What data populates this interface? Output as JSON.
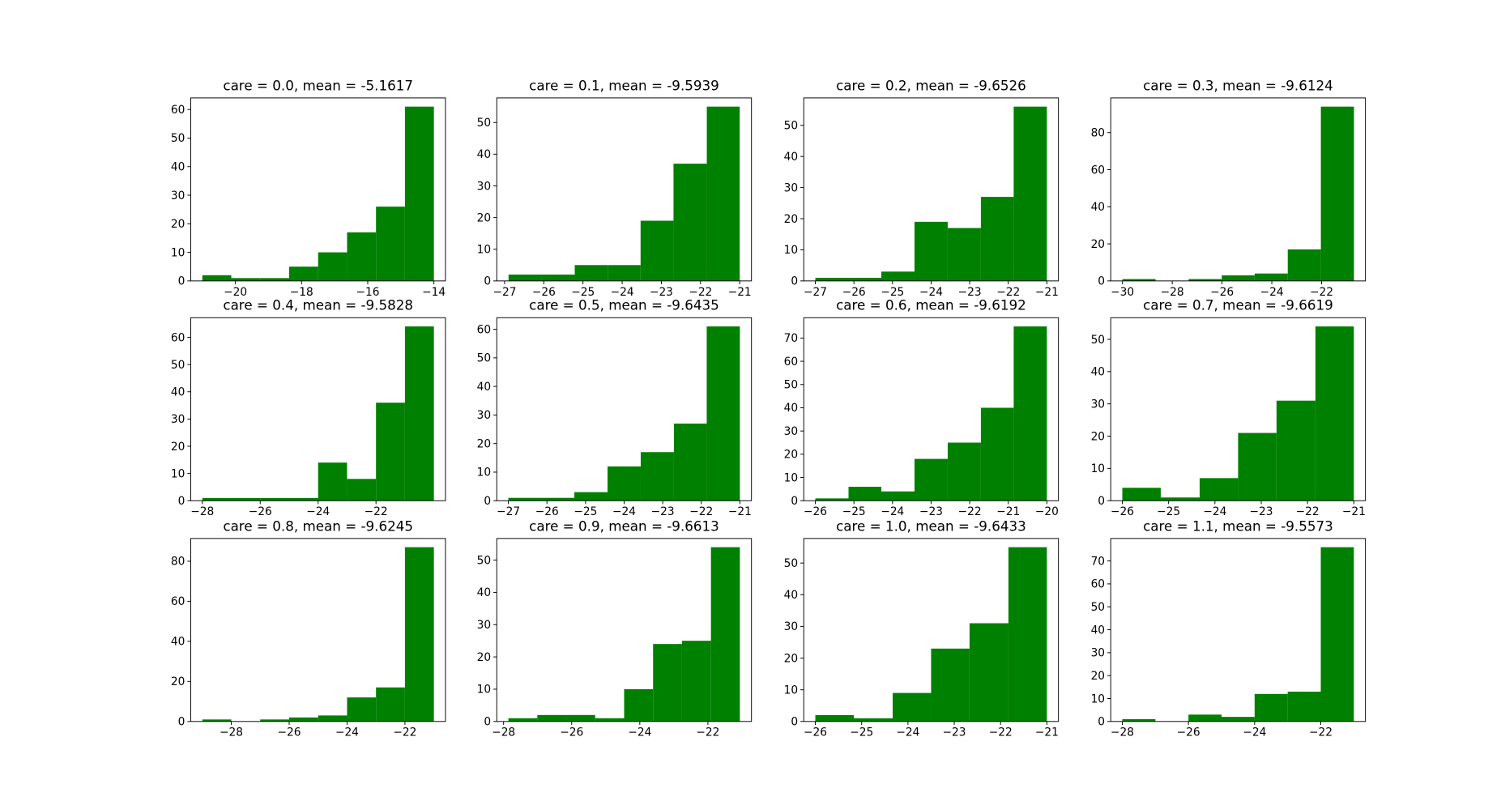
{
  "chart_data": [
    {
      "type": "histogram",
      "title": "care = 0.0, mean = -5.1617",
      "color": "#008000",
      "bins": [
        -21,
        -20.125,
        -19.25,
        -18.375,
        -17.5,
        -16.625,
        -15.75,
        -14.875,
        -14
      ],
      "values": [
        2,
        1,
        1,
        5,
        10,
        17,
        26,
        61
      ],
      "xlim": [
        -21.35,
        -13.65
      ],
      "xticks": [
        {
          "value": -20,
          "label": "−20"
        },
        {
          "value": -18,
          "label": "−18"
        },
        {
          "value": -16,
          "label": "−16"
        },
        {
          "value": -14,
          "label": "−14"
        }
      ],
      "ylim": [
        0,
        64.05
      ],
      "yticks": [
        0,
        10,
        20,
        30,
        40,
        50,
        60
      ]
    },
    {
      "type": "histogram",
      "title": "care = 0.1, mean = -9.5939",
      "color": "#008000",
      "bins": [
        -26.9,
        -26.06,
        -25.21,
        -24.37,
        -23.53,
        -22.69,
        -21.84,
        -21.0
      ],
      "values": [
        2,
        2,
        5,
        5,
        19,
        37,
        55
      ],
      "xlim": [
        -27.2,
        -20.7
      ],
      "xticks": [
        {
          "value": -27,
          "label": "−27"
        },
        {
          "value": -26,
          "label": "−26"
        },
        {
          "value": -25,
          "label": "−25"
        },
        {
          "value": -24,
          "label": "−24"
        },
        {
          "value": -23,
          "label": "−23"
        },
        {
          "value": -22,
          "label": "−22"
        },
        {
          "value": -21,
          "label": "−21"
        }
      ],
      "ylim": [
        0,
        57.75
      ],
      "yticks": [
        0,
        10,
        20,
        30,
        40,
        50
      ]
    },
    {
      "type": "histogram",
      "title": "care = 0.2, mean = -9.6526",
      "color": "#008000",
      "bins": [
        -27,
        -26.14,
        -25.29,
        -24.43,
        -23.57,
        -22.71,
        -21.86,
        -21
      ],
      "values": [
        1,
        1,
        3,
        19,
        17,
        27,
        56
      ],
      "xlim": [
        -27.3,
        -20.7
      ],
      "xticks": [
        {
          "value": -27,
          "label": "−27"
        },
        {
          "value": -26,
          "label": "−26"
        },
        {
          "value": -25,
          "label": "−25"
        },
        {
          "value": -24,
          "label": "−24"
        },
        {
          "value": -23,
          "label": "−23"
        },
        {
          "value": -22,
          "label": "−22"
        },
        {
          "value": -21,
          "label": "−21"
        }
      ],
      "ylim": [
        0,
        58.8
      ],
      "yticks": [
        0,
        10,
        20,
        30,
        40,
        50
      ]
    },
    {
      "type": "histogram",
      "title": "care = 0.3, mean = -9.6124",
      "color": "#008000",
      "bins": [
        -30,
        -28.67,
        -27.34,
        -26.01,
        -24.69,
        -23.36,
        -22.03,
        -20.7
      ],
      "values": [
        1,
        0,
        1,
        3,
        4,
        17,
        94
      ],
      "xlim": [
        -30.47,
        -20.24
      ],
      "xticks": [
        {
          "value": -30,
          "label": "−30"
        },
        {
          "value": -28,
          "label": "−28"
        },
        {
          "value": -26,
          "label": "−26"
        },
        {
          "value": -24,
          "label": "−24"
        },
        {
          "value": -22,
          "label": "−22"
        }
      ],
      "ylim": [
        0,
        98.7
      ],
      "yticks": [
        0,
        20,
        40,
        60,
        80
      ]
    },
    {
      "type": "histogram",
      "title": "care = 0.4, mean = -9.5828",
      "color": "#008000",
      "bins": [
        -28,
        -27,
        -26,
        -25,
        -24,
        -23,
        -22,
        -21,
        -20
      ],
      "values": [
        1,
        1,
        1,
        1,
        14,
        8,
        36,
        64
      ],
      "xlim": [
        -28.4,
        -19.6
      ],
      "xticks": [
        {
          "value": -28,
          "label": "−28"
        },
        {
          "value": -26,
          "label": "−26"
        },
        {
          "value": -24,
          "label": "−24"
        },
        {
          "value": -22,
          "label": "−22"
        }
      ],
      "ylim": [
        0,
        67.2
      ],
      "yticks": [
        0,
        10,
        20,
        30,
        40,
        50,
        60
      ]
    },
    {
      "type": "histogram",
      "title": "care = 0.5, mean = -9.6435",
      "color": "#008000",
      "bins": [
        -27,
        -26.14,
        -25.29,
        -24.43,
        -23.57,
        -22.71,
        -21.86,
        -21
      ],
      "values": [
        1,
        1,
        3,
        12,
        17,
        27,
        61
      ],
      "xlim": [
        -27.3,
        -20.7
      ],
      "xticks": [
        {
          "value": -27,
          "label": "−27"
        },
        {
          "value": -26,
          "label": "−26"
        },
        {
          "value": -25,
          "label": "−25"
        },
        {
          "value": -24,
          "label": "−24"
        },
        {
          "value": -23,
          "label": "−23"
        },
        {
          "value": -22,
          "label": "−22"
        },
        {
          "value": -21,
          "label": "−21"
        }
      ],
      "ylim": [
        0,
        64.05
      ],
      "yticks": [
        0,
        10,
        20,
        30,
        40,
        50,
        60
      ]
    },
    {
      "type": "histogram",
      "title": "care = 0.6, mean = -9.6192",
      "color": "#008000",
      "bins": [
        -26,
        -25.14,
        -24.29,
        -23.43,
        -22.57,
        -21.71,
        -20.86,
        -20
      ],
      "values": [
        1,
        6,
        4,
        18,
        25,
        40,
        75
      ],
      "xlim": [
        -26.3,
        -19.7
      ],
      "xticks": [
        {
          "value": -26,
          "label": "−26"
        },
        {
          "value": -25,
          "label": "−25"
        },
        {
          "value": -24,
          "label": "−24"
        },
        {
          "value": -23,
          "label": "−23"
        },
        {
          "value": -22,
          "label": "−22"
        },
        {
          "value": -21,
          "label": "−21"
        },
        {
          "value": -20,
          "label": "−20"
        }
      ],
      "ylim": [
        0,
        78.75
      ],
      "yticks": [
        0,
        10,
        20,
        30,
        40,
        50,
        60,
        70
      ]
    },
    {
      "type": "histogram",
      "title": "care = 0.7, mean = -9.6619",
      "color": "#008000",
      "bins": [
        -26,
        -25.17,
        -24.33,
        -23.5,
        -22.67,
        -21.83,
        -21
      ],
      "values": [
        4,
        1,
        7,
        21,
        31,
        54
      ],
      "xlim": [
        -26.25,
        -20.75
      ],
      "xticks": [
        {
          "value": -26,
          "label": "−26"
        },
        {
          "value": -25,
          "label": "−25"
        },
        {
          "value": -24,
          "label": "−24"
        },
        {
          "value": -23,
          "label": "−23"
        },
        {
          "value": -22,
          "label": "−22"
        },
        {
          "value": -21,
          "label": "−21"
        }
      ],
      "ylim": [
        0,
        56.7
      ],
      "yticks": [
        0,
        10,
        20,
        30,
        40,
        50
      ]
    },
    {
      "type": "histogram",
      "title": "care = 0.8, mean = -9.6245",
      "color": "#008000",
      "bins": [
        -29,
        -28,
        -27,
        -26,
        -25,
        -24,
        -23,
        -22,
        -21
      ],
      "values": [
        1,
        0,
        1,
        2,
        3,
        12,
        17,
        87
      ],
      "xlim": [
        -29.4,
        -20.6
      ],
      "xticks": [
        {
          "value": -28,
          "label": "−28"
        },
        {
          "value": -26,
          "label": "−26"
        },
        {
          "value": -24,
          "label": "−24"
        },
        {
          "value": -22,
          "label": "−22"
        }
      ],
      "ylim": [
        0,
        91.35
      ],
      "yticks": [
        0,
        20,
        40,
        60,
        80
      ]
    },
    {
      "type": "histogram",
      "title": "care = 0.9, mean = -9.6613",
      "color": "#008000",
      "bins": [
        -27.86,
        -27.01,
        -26.16,
        -25.31,
        -24.46,
        -23.61,
        -22.76,
        -21.91,
        -21.06
      ],
      "values": [
        1,
        2,
        2,
        1,
        10,
        24,
        25,
        54
      ],
      "xlim": [
        -28.2,
        -20.72
      ],
      "xticks": [
        {
          "value": -28,
          "label": "−28"
        },
        {
          "value": -26,
          "label": "−26"
        },
        {
          "value": -24,
          "label": "−24"
        },
        {
          "value": -22,
          "label": "−22"
        }
      ],
      "ylim": [
        0,
        56.7
      ],
      "yticks": [
        0,
        10,
        20,
        30,
        40,
        50
      ]
    },
    {
      "type": "histogram",
      "title": "care = 1.0, mean = -9.6433",
      "color": "#008000",
      "bins": [
        -26,
        -25.17,
        -24.33,
        -23.5,
        -22.67,
        -21.83,
        -21
      ],
      "values": [
        2,
        1,
        9,
        23,
        31,
        55
      ],
      "xlim": [
        -26.25,
        -20.75
      ],
      "xticks": [
        {
          "value": -26,
          "label": "−26"
        },
        {
          "value": -25,
          "label": "−25"
        },
        {
          "value": -24,
          "label": "−24"
        },
        {
          "value": -23,
          "label": "−23"
        },
        {
          "value": -22,
          "label": "−22"
        },
        {
          "value": -21,
          "label": "−21"
        }
      ],
      "ylim": [
        0,
        57.75
      ],
      "yticks": [
        0,
        10,
        20,
        30,
        40,
        50
      ]
    },
    {
      "type": "histogram",
      "title": "care = 1.1, mean = -9.5573",
      "color": "#008000",
      "bins": [
        -28,
        -27,
        -26,
        -25,
        -24,
        -23,
        -22,
        -21
      ],
      "values": [
        1,
        0,
        3,
        2,
        12,
        13,
        76
      ],
      "xlim": [
        -28.35,
        -20.65
      ],
      "xticks": [
        {
          "value": -28,
          "label": "−28"
        },
        {
          "value": -26,
          "label": "−26"
        },
        {
          "value": -24,
          "label": "−24"
        },
        {
          "value": -22,
          "label": "−22"
        }
      ],
      "ylim": [
        0,
        79.8
      ],
      "yticks": [
        0,
        10,
        20,
        30,
        40,
        50,
        60,
        70
      ]
    }
  ]
}
